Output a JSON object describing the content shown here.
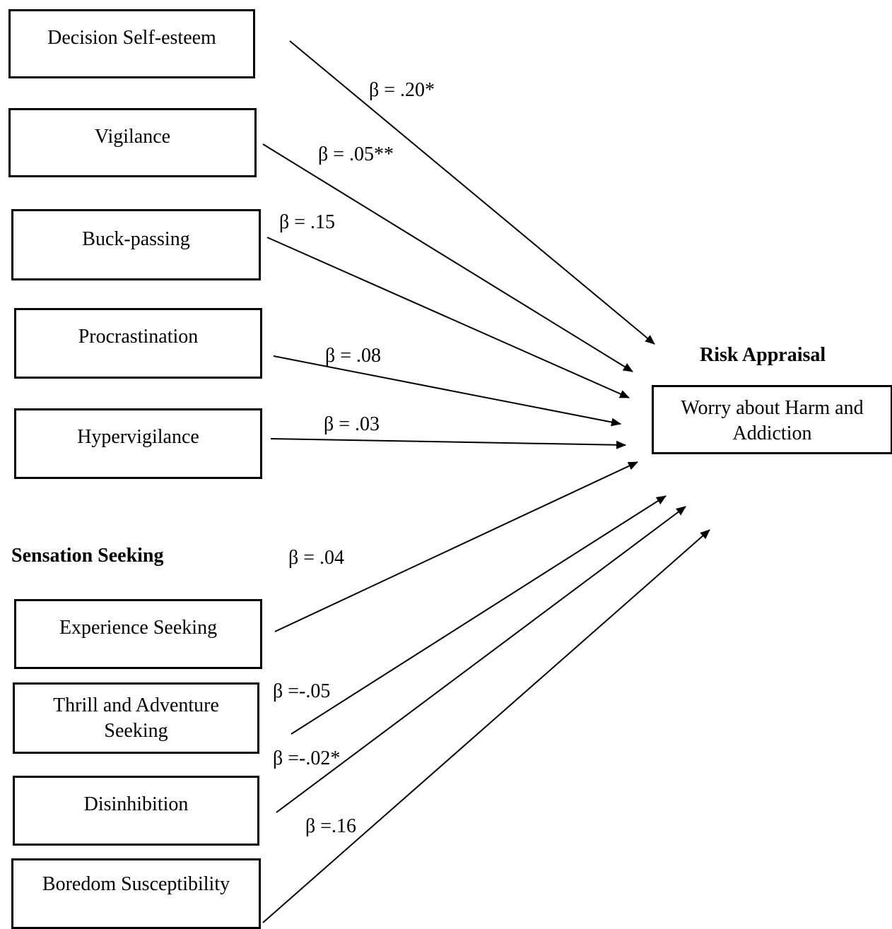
{
  "headings": {
    "outcome": "Risk Appraisal",
    "sensation": "Sensation Seeking"
  },
  "outcome_box": {
    "label": "Worry about Harm and Addiction"
  },
  "predictors": [
    {
      "label": "Decision Self-esteem",
      "beta": "β = .20*"
    },
    {
      "label": "Vigilance",
      "beta": "β = .05**"
    },
    {
      "label": "Buck-passing",
      "beta": "β = .15"
    },
    {
      "label": "Procrastination",
      "beta": "β = .08"
    },
    {
      "label": "Hypervigilance",
      "beta": "β = .03"
    },
    {
      "label": "Experience Seeking",
      "beta": "β = .04"
    },
    {
      "label": "Thrill and Adventure Seeking",
      "beta": "β =-.05"
    },
    {
      "label": "Disinhibition",
      "beta": "β =-.02*"
    },
    {
      "label": "Boredom Susceptibility",
      "beta": "β =.16"
    }
  ]
}
